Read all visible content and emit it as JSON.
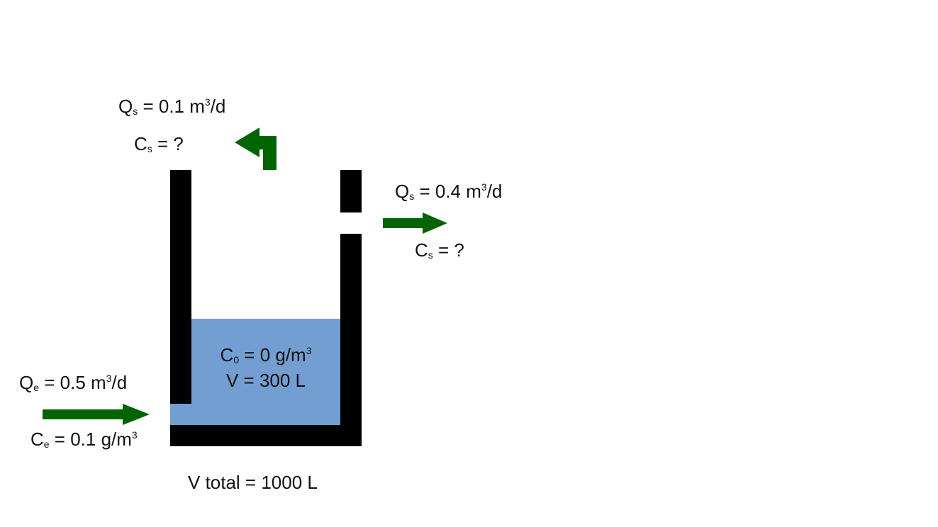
{
  "colors": {
    "wall": "#000000",
    "water": "#739ed1",
    "arrow": "#006400",
    "text": "#111111",
    "background": "#ffffff"
  },
  "labels": {
    "top_outlet_flow": {
      "symbol": "Q",
      "sub": "s",
      "value": " = 0.1 m",
      "sup": "3",
      "unit": "/d"
    },
    "top_outlet_conc": {
      "symbol": "C",
      "sub": "s",
      "value": " = ?"
    },
    "side_outlet_flow": {
      "symbol": "Q",
      "sub": "s",
      "value": " = 0.4 m",
      "sup": "3",
      "unit": "/d"
    },
    "side_outlet_conc": {
      "symbol": "C",
      "sub": "s",
      "value": " = ?"
    },
    "inlet_flow": {
      "symbol": "Q",
      "sub": "e",
      "value": " = 0.5 m",
      "sup": "3",
      "unit": "/d"
    },
    "inlet_conc": {
      "symbol": "C",
      "sub": "e",
      "value": " = 0.1 g/m",
      "sup": "3"
    },
    "initial_conc": {
      "symbol": "C",
      "sub": "0",
      "value": " = 0 g/m",
      "sup": "3"
    },
    "water_volume": "V = 300 L",
    "total_volume": "V total = 1000 L"
  },
  "icons": {
    "top_outlet": "arrow-up-left-icon",
    "side_outlet": "arrow-right-icon",
    "inlet": "arrow-right-icon"
  }
}
